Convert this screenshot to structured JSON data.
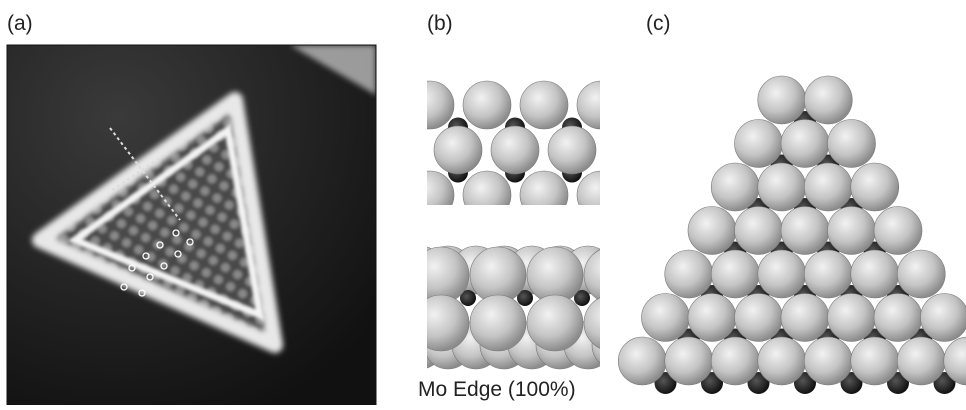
{
  "panels": [
    {
      "label": "(a)"
    },
    {
      "label": "(b)",
      "caption": "Mo Edge (100%)"
    },
    {
      "label": "(c)"
    }
  ]
}
